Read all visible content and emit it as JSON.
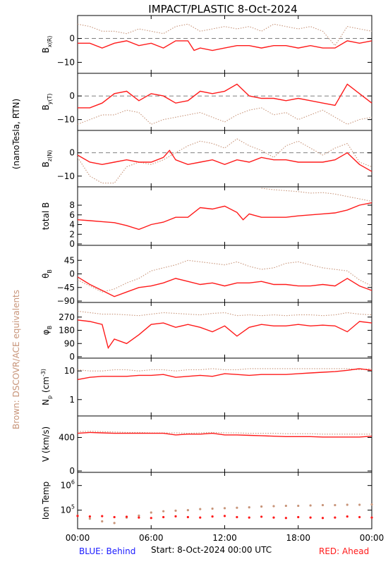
{
  "title": "IMPACT/PLASTIC    8-Oct-2024",
  "left_labels": {
    "units": "(nanoTesla, RTN)",
    "equivalents": "Brown: DSCOVR/ACE equivalents"
  },
  "footer": {
    "blue": "BLUE: Behind",
    "start": "Start:  8-Oct-2024 00:00 UTC",
    "red": "RED: Ahead"
  },
  "colors": {
    "red": "#ff1a1a",
    "brown": "#c8957a",
    "blue": "#1a1aff",
    "axis": "#000000"
  },
  "x_axis": {
    "ticks": [
      "00:00",
      "06:00",
      "12:00",
      "18:00",
      "00:00"
    ],
    "hours": [
      0,
      6,
      12,
      18,
      24
    ]
  },
  "chart_data": [
    {
      "type": "line",
      "ylabel": "B_x(R)",
      "ylim": [
        -14,
        9
      ],
      "dashed_zero": true,
      "yticks": [
        0,
        -10
      ],
      "ytick_labels": [
        "0",
        "−10"
      ],
      "series": [
        {
          "name": "red",
          "x": [
            0,
            1,
            2,
            3,
            4,
            5,
            6,
            7,
            8,
            9,
            9.5,
            10,
            11,
            12,
            13,
            14,
            15,
            16,
            17,
            18,
            19,
            20,
            21,
            22,
            23,
            24
          ],
          "y": [
            -2,
            -2,
            -4,
            -2,
            -1,
            -3,
            -2,
            -4,
            -1,
            -1,
            -5,
            -4,
            -5,
            -4,
            -3,
            -3,
            -4,
            -3,
            -3,
            -4,
            -3,
            -4,
            -4,
            -1,
            -2,
            -1
          ]
        },
        {
          "name": "brown",
          "x": [
            0,
            1,
            2,
            3,
            4,
            5,
            6,
            7,
            8,
            9,
            10,
            11,
            12,
            13,
            14,
            15,
            16,
            17,
            18,
            19,
            20,
            21,
            22,
            23,
            24
          ],
          "y": [
            6,
            5,
            3,
            3,
            2,
            4,
            3,
            2,
            5,
            6,
            3,
            4,
            5,
            4,
            5,
            3,
            6,
            5,
            4,
            5,
            3,
            -3,
            5,
            4,
            3
          ]
        }
      ]
    },
    {
      "type": "line",
      "ylabel": "B_y(T)",
      "ylim": [
        -14,
        9
      ],
      "dashed_zero": true,
      "yticks": [
        0,
        -10
      ],
      "ytick_labels": [
        "0",
        "−10"
      ],
      "series": [
        {
          "name": "red",
          "x": [
            0,
            1,
            2,
            3,
            4,
            5,
            6,
            7,
            8,
            9,
            10,
            11,
            12,
            13,
            14,
            15,
            16,
            17,
            18,
            19,
            20,
            21,
            22,
            23,
            24
          ],
          "y": [
            -5,
            -5,
            -3,
            1,
            2,
            -2,
            1,
            0,
            -3,
            -2,
            2,
            1,
            2,
            5,
            0,
            -1,
            -1,
            -2,
            -1,
            -2,
            -3,
            -4,
            5,
            1,
            -3
          ]
        },
        {
          "name": "brown",
          "x": [
            0,
            1,
            2,
            3,
            4,
            5,
            6,
            7,
            8,
            9,
            10,
            11,
            12,
            13,
            14,
            15,
            16,
            17,
            18,
            19,
            20,
            21,
            22,
            23,
            24
          ],
          "y": [
            -12,
            -10,
            -8,
            -8,
            -6,
            -7,
            -12,
            -10,
            -9,
            -8,
            -7,
            -9,
            -11,
            -8,
            -6,
            -5,
            -8,
            -7,
            -10,
            -8,
            -6,
            -9,
            -12,
            -10,
            -9
          ]
        }
      ]
    },
    {
      "type": "line",
      "ylabel": "B_z(N)",
      "ylim": [
        -14,
        9
      ],
      "dashed_zero": true,
      "yticks": [
        0,
        -10
      ],
      "ytick_labels": [
        "0",
        "−10"
      ],
      "series": [
        {
          "name": "red",
          "x": [
            0,
            1,
            2,
            3,
            4,
            5,
            6,
            7,
            7.5,
            8,
            9,
            10,
            11,
            12,
            13,
            14,
            15,
            16,
            17,
            18,
            19,
            20,
            21,
            22,
            23,
            24
          ],
          "y": [
            -1,
            -4,
            -5,
            -4,
            -3,
            -4,
            -4,
            -2,
            1,
            -3,
            -5,
            -4,
            -3,
            -5,
            -3,
            -4,
            -2,
            -3,
            -3,
            -4,
            -4,
            -4,
            -3,
            0,
            -5,
            -8
          ]
        },
        {
          "name": "brown",
          "x": [
            0,
            1,
            2,
            3,
            4,
            5,
            6,
            7,
            8,
            9,
            10,
            11,
            12,
            13,
            14,
            15,
            16,
            17,
            18,
            19,
            20,
            21,
            22,
            23,
            24
          ],
          "y": [
            -2,
            -10,
            -13,
            -13,
            -6,
            -4,
            -5,
            -3,
            0,
            3,
            5,
            4,
            2,
            6,
            3,
            1,
            -2,
            3,
            5,
            2,
            -1,
            2,
            4,
            -4,
            -6
          ]
        }
      ]
    },
    {
      "type": "line",
      "ylabel": "total B",
      "ylim": [
        0,
        11.5
      ],
      "dashed_zero": false,
      "yticks": [
        0,
        2,
        4,
        6,
        8
      ],
      "ytick_labels": [
        "0",
        "2",
        "4",
        "6",
        "8"
      ],
      "series": [
        {
          "name": "red",
          "x": [
            0,
            1,
            2,
            3,
            4,
            5,
            5.5,
            6,
            7,
            8,
            9,
            10,
            11,
            12,
            13,
            13.5,
            14,
            15,
            16,
            17,
            18,
            19,
            20,
            21,
            22,
            23,
            24
          ],
          "y": [
            5,
            4.8,
            4.6,
            4.4,
            3.8,
            3,
            3.5,
            4,
            4.5,
            5.5,
            5.5,
            7.5,
            7.2,
            7.8,
            6.5,
            5,
            6.2,
            5.5,
            5.5,
            5.5,
            5.8,
            6,
            6.2,
            6.4,
            7,
            8,
            8.5
          ]
        },
        {
          "name": "brown",
          "x": [
            15,
            16,
            17,
            18,
            19,
            20,
            21,
            22,
            23,
            24
          ],
          "y": [
            11.5,
            11.2,
            11,
            10.8,
            10.5,
            10.6,
            10.3,
            9.8,
            9.3,
            8.8
          ]
        }
      ]
    },
    {
      "type": "line",
      "ylabel": "θ_B",
      "ylim": [
        -90,
        90
      ],
      "dashed_zero": false,
      "yticks": [
        45,
        0,
        -45,
        -90
      ],
      "ytick_labels": [
        "45",
        "0",
        "−45",
        "−90"
      ],
      "series": [
        {
          "name": "red",
          "x": [
            0,
            1,
            2,
            3,
            4,
            5,
            6,
            7,
            8,
            9,
            10,
            11,
            12,
            13,
            14,
            15,
            16,
            17,
            18,
            19,
            20,
            21,
            22,
            23,
            24
          ],
          "y": [
            -10,
            -35,
            -55,
            -75,
            -60,
            -45,
            -40,
            -30,
            -15,
            -25,
            -35,
            -30,
            -40,
            -30,
            -30,
            -25,
            -35,
            -35,
            -40,
            -40,
            -35,
            -40,
            -15,
            -40,
            -55
          ]
        },
        {
          "name": "brown",
          "x": [
            0,
            1,
            2,
            3,
            4,
            5,
            6,
            7,
            8,
            9,
            10,
            11,
            12,
            13,
            14,
            15,
            16,
            17,
            18,
            19,
            20,
            21,
            22,
            23,
            24
          ],
          "y": [
            -20,
            -40,
            -60,
            -50,
            -30,
            -15,
            10,
            20,
            30,
            45,
            40,
            35,
            30,
            40,
            25,
            15,
            20,
            35,
            40,
            30,
            20,
            15,
            10,
            -20,
            -40
          ]
        }
      ]
    },
    {
      "type": "line",
      "ylabel": "φ_B",
      "ylim": [
        0,
        360
      ],
      "dashed_zero": false,
      "yticks": [
        270,
        180,
        90,
        0
      ],
      "ytick_labels": [
        "270",
        "180",
        "90",
        "0"
      ],
      "series": [
        {
          "name": "red",
          "x": [
            0,
            1,
            2,
            2.5,
            3,
            4,
            5,
            6,
            7,
            8,
            9,
            10,
            11,
            12,
            13,
            14,
            15,
            16,
            17,
            18,
            19,
            20,
            21,
            22,
            23,
            24
          ],
          "y": [
            250,
            240,
            220,
            60,
            120,
            90,
            150,
            220,
            230,
            200,
            220,
            200,
            170,
            210,
            140,
            200,
            220,
            210,
            210,
            220,
            210,
            215,
            210,
            170,
            240,
            230
          ]
        },
        {
          "name": "brown",
          "x": [
            0,
            1,
            2,
            3,
            4,
            5,
            6,
            7,
            8,
            9,
            10,
            11,
            12,
            13,
            14,
            15,
            16,
            17,
            18,
            19,
            20,
            21,
            22,
            23,
            24
          ],
          "y": [
            310,
            300,
            290,
            290,
            285,
            280,
            290,
            300,
            295,
            290,
            285,
            295,
            300,
            280,
            285,
            280,
            285,
            280,
            285,
            285,
            280,
            285,
            300,
            290,
            285
          ]
        }
      ]
    },
    {
      "type": "line",
      "ylabel": "N_p (cm^-3)",
      "ylim": [
        0.3,
        25
      ],
      "log_scale": true,
      "dashed_zero": false,
      "yticks": [
        10,
        1
      ],
      "ytick_labels": [
        "10",
        "1"
      ],
      "series": [
        {
          "name": "red",
          "x": [
            0,
            1,
            2,
            3,
            4,
            5,
            6,
            7,
            8,
            9,
            10,
            11,
            12,
            13,
            14,
            15,
            16,
            17,
            18,
            19,
            20,
            21,
            22,
            23,
            24
          ],
          "y": [
            5,
            6,
            6.5,
            6.5,
            6.5,
            7,
            7,
            7.5,
            6,
            6.5,
            7,
            6.5,
            8,
            7.5,
            7,
            7.5,
            7.5,
            7.5,
            8,
            8.5,
            9,
            9.5,
            10.5,
            12,
            10.5
          ]
        },
        {
          "name": "brown",
          "x": [
            0,
            1,
            2,
            3,
            4,
            5,
            6,
            7,
            8,
            9,
            10,
            11,
            12,
            13,
            14,
            15,
            16,
            17,
            18,
            19,
            20,
            21,
            22,
            23,
            24
          ],
          "y": [
            11,
            10,
            10,
            11,
            11,
            10,
            11,
            11,
            10,
            11,
            11,
            12,
            11,
            11,
            12,
            12,
            12,
            12,
            12,
            12,
            12,
            12,
            12,
            11,
            12
          ]
        }
      ]
    },
    {
      "type": "line",
      "ylabel": "V (km/s)",
      "ylim": [
        0,
        640
      ],
      "dashed_zero": false,
      "yticks": [
        400,
        0
      ],
      "ytick_labels": [
        "400",
        "0"
      ],
      "series": [
        {
          "name": "red",
          "x": [
            0,
            1,
            2,
            3,
            4,
            5,
            6,
            7,
            8,
            9,
            10,
            11,
            12,
            13,
            14,
            15,
            16,
            17,
            18,
            19,
            20,
            21,
            22,
            23,
            24
          ],
          "y": [
            450,
            460,
            455,
            450,
            450,
            450,
            450,
            450,
            430,
            440,
            440,
            450,
            430,
            430,
            425,
            420,
            415,
            410,
            410,
            410,
            405,
            405,
            405,
            405,
            415
          ]
        },
        {
          "name": "brown",
          "x": [
            0,
            1,
            2,
            3,
            4,
            5,
            6,
            7,
            8,
            9,
            10,
            11,
            12,
            13,
            14,
            15,
            16,
            17,
            18,
            19,
            20,
            21,
            22,
            23,
            24
          ],
          "y": [
            470,
            475,
            470,
            465,
            460,
            460,
            455,
            455,
            455,
            450,
            455,
            460,
            455,
            455,
            450,
            450,
            450,
            445,
            445,
            445,
            440,
            440,
            440,
            440,
            440
          ]
        }
      ]
    },
    {
      "type": "scatter",
      "ylabel": "Ion Temp",
      "ylim": [
        20000,
        3000000
      ],
      "log_scale": true,
      "dashed_zero": false,
      "yticks": [
        1000000,
        100000
      ],
      "ytick_labels": [
        "10^6",
        "10^5"
      ],
      "series": [
        {
          "name": "red",
          "x": [
            0,
            1,
            2,
            3,
            4,
            5,
            6,
            7,
            8,
            9,
            10,
            11,
            12,
            13,
            14,
            15,
            16,
            17,
            18,
            19,
            20,
            21,
            22,
            23,
            24
          ],
          "y": [
            58000,
            55000,
            57000,
            52000,
            54000,
            50000,
            48000,
            52000,
            56000,
            52000,
            50000,
            55000,
            58000,
            52000,
            50000,
            54000,
            50000,
            48000,
            52000,
            50000,
            48000,
            50000,
            55000,
            52000,
            50000
          ]
        },
        {
          "name": "brown",
          "x": [
            0,
            1,
            2,
            3,
            4,
            5,
            6,
            7,
            8,
            9,
            10,
            11,
            12,
            13,
            14,
            15,
            16,
            17,
            18,
            19,
            20,
            21,
            22,
            23,
            24
          ],
          "y": [
            60000,
            45000,
            35000,
            30000,
            50000,
            60000,
            80000,
            90000,
            95000,
            100000,
            110000,
            115000,
            120000,
            125000,
            130000,
            140000,
            145000,
            150000,
            150000,
            155000,
            160000,
            160000,
            165000,
            165000,
            170000
          ]
        }
      ]
    }
  ]
}
